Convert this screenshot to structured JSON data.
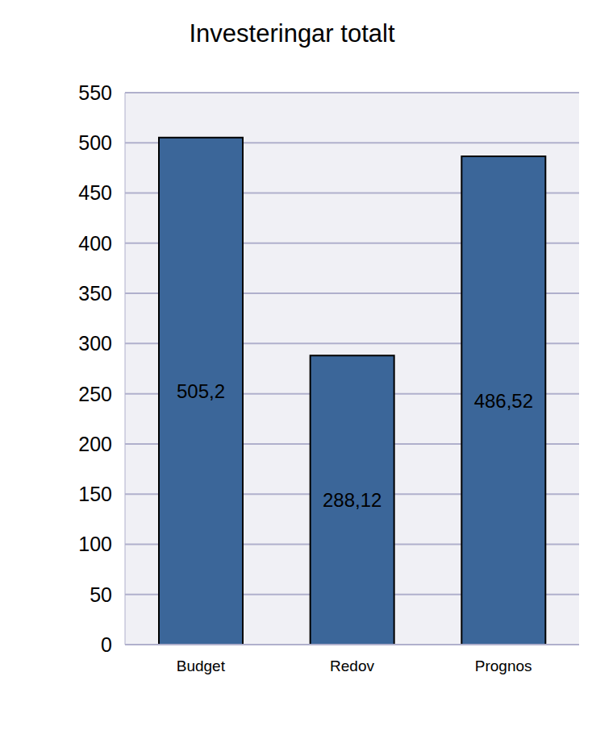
{
  "chart_data": {
    "type": "bar",
    "title": "Investeringar totalt",
    "categories": [
      "Budget",
      "Redov",
      "Prognos"
    ],
    "values": [
      505.2,
      288.12,
      486.52
    ],
    "value_labels": [
      "505,2",
      "288,12",
      "486,52"
    ],
    "color": "#3b6699",
    "ylim": [
      0,
      550
    ],
    "yticks": [
      0,
      50,
      100,
      150,
      200,
      250,
      300,
      350,
      400,
      450,
      500,
      550
    ],
    "grid": true,
    "data_labels": true
  }
}
